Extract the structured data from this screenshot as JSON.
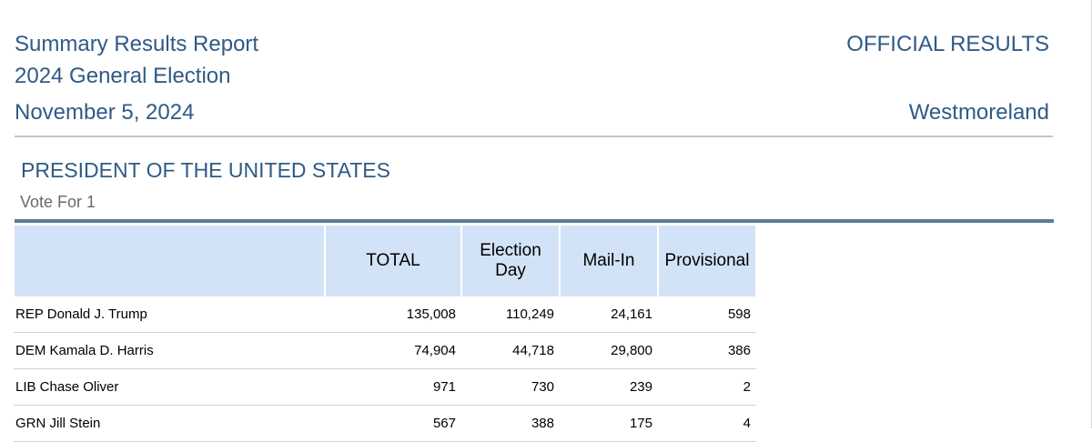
{
  "header": {
    "title": "Summary Results Report",
    "election": "2024 General Election",
    "date": "November 5, 2024",
    "status": "OFFICIAL RESULTS",
    "county": "Westmoreland"
  },
  "contest": {
    "name": "PRESIDENT OF THE UNITED STATES",
    "vote_for": "Vote For 1",
    "columns": [
      "",
      "TOTAL",
      "Election Day",
      "Mail-In",
      "Provisional"
    ],
    "rows": [
      {
        "name": "REP Donald J. Trump",
        "total": "135,008",
        "election_day": "110,249",
        "mail_in": "24,161",
        "provisional": "598"
      },
      {
        "name": "DEM Kamala D. Harris",
        "total": "74,904",
        "election_day": "44,718",
        "mail_in": "29,800",
        "provisional": "386"
      },
      {
        "name": "LIB Chase Oliver",
        "total": "971",
        "election_day": "730",
        "mail_in": "239",
        "provisional": "2"
      },
      {
        "name": "GRN Jill Stein",
        "total": "567",
        "election_day": "388",
        "mail_in": "175",
        "provisional": "4"
      }
    ]
  }
}
